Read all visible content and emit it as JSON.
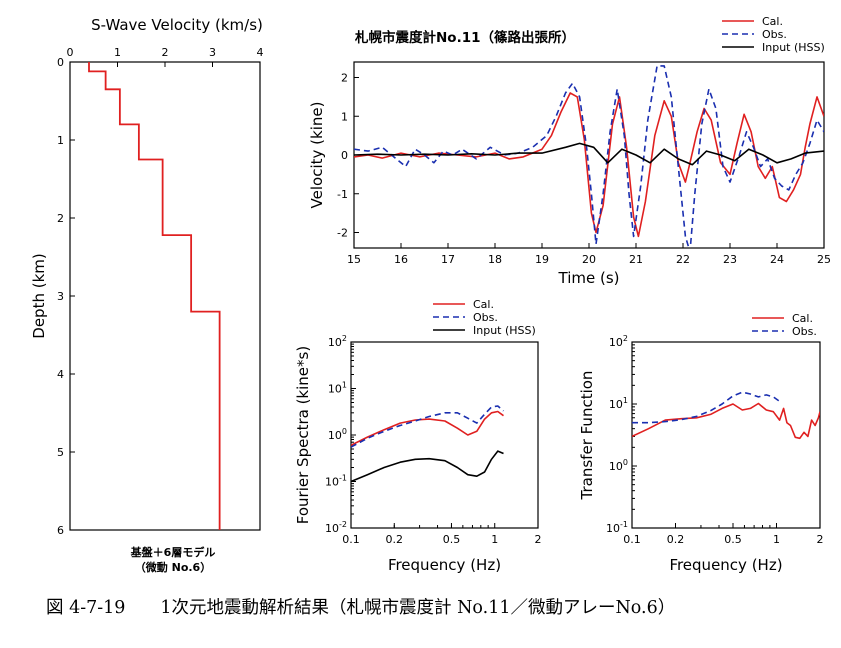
{
  "caption": "図 4-7-19　　1次元地震動解析結果（札幌市震度計 No.11／微動アレーNo.6）",
  "chart_data": [
    {
      "id": "vs_profile",
      "type": "line",
      "title": "S-Wave Velocity (km/s)",
      "xlabel": "S-Wave Velocity (km/s)",
      "ylabel": "Depth (km)",
      "xlim": [
        0,
        4
      ],
      "ylim": [
        0,
        6
      ],
      "x_ticks": [
        "0",
        "1",
        "2",
        "3",
        "4"
      ],
      "y_ticks": [
        "0",
        "1",
        "2",
        "3",
        "4",
        "5",
        "6"
      ],
      "footer_line1": "基盤＋6層モデル",
      "footer_line2": "（微動 No.6）",
      "color": "#e02020",
      "layers": [
        {
          "vs": 0.4,
          "top": 0.0,
          "bottom": 0.12
        },
        {
          "vs": 0.75,
          "top": 0.12,
          "bottom": 0.35
        },
        {
          "vs": 1.05,
          "top": 0.35,
          "bottom": 0.8
        },
        {
          "vs": 1.45,
          "top": 0.8,
          "bottom": 1.25
        },
        {
          "vs": 1.95,
          "top": 1.25,
          "bottom": 2.22
        },
        {
          "vs": 2.55,
          "top": 2.22,
          "bottom": 3.2
        },
        {
          "vs": 3.15,
          "top": 3.2,
          "bottom": 6.0
        }
      ]
    },
    {
      "id": "velocity_waveform",
      "type": "line",
      "title": "札幌市震度計No.11（篠路出張所）",
      "xlabel": "Time (s)",
      "ylabel": "Velocity (kine)",
      "xlim": [
        15,
        25
      ],
      "ylim": [
        -2.4,
        2.4
      ],
      "x_ticks": [
        "15",
        "16",
        "17",
        "18",
        "19",
        "20",
        "21",
        "22",
        "23",
        "24",
        "25"
      ],
      "y_ticks": [
        "-2",
        "-1",
        "0",
        "1",
        "2"
      ],
      "legend": [
        "Cal.",
        "Obs.",
        "Input (HSS)"
      ],
      "series": [
        {
          "name": "Cal.",
          "color": "#e02020",
          "dash": "none",
          "x": [
            15.0,
            15.3,
            15.6,
            16.0,
            16.4,
            16.8,
            17.2,
            17.6,
            18.0,
            18.3,
            18.6,
            19.0,
            19.2,
            19.4,
            19.6,
            19.75,
            19.9,
            20.05,
            20.15,
            20.3,
            20.5,
            20.65,
            20.8,
            20.95,
            21.05,
            21.2,
            21.4,
            21.6,
            21.75,
            21.9,
            22.05,
            22.15,
            22.3,
            22.45,
            22.6,
            22.8,
            23.0,
            23.15,
            23.3,
            23.45,
            23.6,
            23.75,
            23.9,
            24.05,
            24.2,
            24.35,
            24.5,
            24.6,
            24.7,
            24.85,
            25.0
          ],
          "y": [
            -0.05,
            0.0,
            -0.08,
            0.05,
            -0.05,
            0.05,
            0.0,
            -0.05,
            0.05,
            -0.1,
            -0.05,
            0.15,
            0.5,
            1.1,
            1.6,
            1.5,
            0.4,
            -1.5,
            -2.0,
            -1.3,
            0.8,
            1.5,
            0.2,
            -1.6,
            -2.1,
            -1.2,
            0.5,
            1.4,
            1.0,
            -0.2,
            -0.7,
            -0.2,
            0.6,
            1.2,
            0.9,
            -0.2,
            -0.5,
            0.3,
            1.05,
            0.6,
            -0.3,
            -0.6,
            -0.3,
            -1.1,
            -1.2,
            -0.9,
            -0.5,
            0.2,
            0.8,
            1.5,
            1.0
          ]
        },
        {
          "name": "Obs.",
          "color": "#1a2fb0",
          "dash": "6 4",
          "x": [
            15.0,
            15.3,
            15.6,
            15.9,
            16.1,
            16.3,
            16.5,
            16.7,
            16.9,
            17.1,
            17.3,
            17.6,
            17.9,
            18.2,
            18.5,
            18.8,
            19.1,
            19.3,
            19.5,
            19.65,
            19.8,
            19.95,
            20.05,
            20.15,
            20.3,
            20.45,
            20.6,
            20.75,
            20.85,
            20.95,
            21.1,
            21.25,
            21.45,
            21.6,
            21.75,
            21.9,
            22.05,
            22.15,
            22.25,
            22.4,
            22.55,
            22.7,
            22.85,
            23.0,
            23.2,
            23.35,
            23.5,
            23.65,
            23.8,
            23.95,
            24.1,
            24.25,
            24.4,
            24.55,
            24.7,
            24.85,
            25.0
          ],
          "y": [
            0.15,
            0.1,
            0.2,
            -0.1,
            -0.3,
            0.15,
            0.0,
            -0.2,
            0.1,
            0.0,
            0.15,
            -0.1,
            0.2,
            0.0,
            0.05,
            0.2,
            0.5,
            1.0,
            1.6,
            1.85,
            1.5,
            0.2,
            -1.0,
            -2.3,
            -1.0,
            0.6,
            1.7,
            0.5,
            -1.0,
            -2.1,
            -0.8,
            0.9,
            2.3,
            2.3,
            1.5,
            -0.3,
            -2.1,
            -2.5,
            -1.0,
            0.8,
            1.7,
            1.2,
            -0.3,
            -0.7,
            0.0,
            0.6,
            0.2,
            -0.3,
            -0.1,
            -0.6,
            -0.8,
            -0.9,
            -0.5,
            -0.2,
            0.3,
            0.9,
            0.6
          ]
        },
        {
          "name": "Input (HSS)",
          "color": "#000000",
          "dash": "none",
          "x": [
            15.0,
            15.5,
            16.0,
            16.5,
            17.0,
            17.5,
            18.0,
            18.5,
            19.0,
            19.5,
            19.8,
            20.1,
            20.4,
            20.7,
            21.0,
            21.3,
            21.6,
            21.9,
            22.2,
            22.5,
            22.8,
            23.1,
            23.4,
            23.7,
            24.0,
            24.3,
            24.6,
            25.0
          ],
          "y": [
            0.0,
            0.02,
            0.0,
            0.02,
            0.0,
            0.03,
            0.0,
            0.05,
            0.05,
            0.2,
            0.3,
            0.2,
            -0.2,
            0.15,
            0.0,
            -0.2,
            0.15,
            -0.1,
            -0.25,
            0.1,
            0.0,
            -0.15,
            0.15,
            0.0,
            -0.2,
            -0.1,
            0.05,
            0.1
          ]
        }
      ]
    },
    {
      "id": "fourier_spectra",
      "type": "line",
      "xlabel": "Frequency (Hz)",
      "ylabel": "Fourier Spectra (kine*s)",
      "x_scale": "log",
      "y_scale": "log",
      "xlim": [
        0.1,
        2
      ],
      "ylim": [
        0.01,
        100
      ],
      "x_ticks": [
        "0.1",
        "0.2",
        "0.5",
        "1",
        "2"
      ],
      "y_ticks": [
        "10-2",
        "10-1",
        "100",
        "101",
        "102"
      ],
      "legend": [
        "Cal.",
        "Obs.",
        "Input (HSS)"
      ],
      "series": [
        {
          "name": "Cal.",
          "color": "#e02020",
          "dash": "none",
          "x": [
            0.1,
            0.13,
            0.17,
            0.22,
            0.28,
            0.35,
            0.45,
            0.55,
            0.65,
            0.75,
            0.85,
            0.95,
            1.05,
            1.15
          ],
          "y": [
            0.6,
            0.9,
            1.3,
            1.8,
            2.1,
            2.2,
            2.0,
            1.4,
            1.0,
            1.2,
            2.2,
            3.0,
            3.2,
            2.6
          ]
        },
        {
          "name": "Obs.",
          "color": "#1a2fb0",
          "dash": "6 4",
          "x": [
            0.1,
            0.13,
            0.17,
            0.22,
            0.28,
            0.35,
            0.45,
            0.55,
            0.65,
            0.75,
            0.85,
            0.95,
            1.05,
            1.15
          ],
          "y": [
            0.55,
            0.85,
            1.2,
            1.6,
            2.0,
            2.5,
            3.0,
            3.0,
            2.3,
            1.8,
            2.8,
            4.0,
            4.2,
            3.3
          ]
        },
        {
          "name": "Input (HSS)",
          "color": "#000000",
          "dash": "none",
          "x": [
            0.1,
            0.13,
            0.17,
            0.22,
            0.28,
            0.35,
            0.45,
            0.55,
            0.65,
            0.75,
            0.85,
            0.95,
            1.05,
            1.15
          ],
          "y": [
            0.1,
            0.14,
            0.2,
            0.26,
            0.3,
            0.31,
            0.28,
            0.2,
            0.14,
            0.13,
            0.16,
            0.3,
            0.45,
            0.4
          ]
        }
      ]
    },
    {
      "id": "transfer_function",
      "type": "line",
      "xlabel": "Frequency (Hz)",
      "ylabel": "Transfer Function",
      "x_scale": "log",
      "y_scale": "log",
      "xlim": [
        0.1,
        2
      ],
      "ylim": [
        0.1,
        100
      ],
      "x_ticks": [
        "0.1",
        "0.2",
        "0.5",
        "1",
        "2"
      ],
      "y_ticks": [
        "10-1",
        "100",
        "101",
        "102"
      ],
      "legend": [
        "Cal.",
        "Obs."
      ],
      "series": [
        {
          "name": "Cal.",
          "color": "#e02020",
          "dash": "none",
          "x": [
            0.1,
            0.13,
            0.17,
            0.22,
            0.28,
            0.35,
            0.42,
            0.5,
            0.58,
            0.66,
            0.75,
            0.85,
            0.95,
            1.05,
            1.12,
            1.18,
            1.25,
            1.35,
            1.45,
            1.55,
            1.65,
            1.75,
            1.85,
            1.95,
            2.0
          ],
          "y": [
            3.0,
            4.0,
            5.5,
            5.8,
            6.0,
            6.8,
            8.5,
            10.0,
            8.0,
            8.5,
            10.2,
            8.0,
            7.5,
            5.5,
            8.5,
            5.0,
            4.5,
            2.9,
            2.8,
            3.5,
            3.0,
            5.5,
            4.5,
            6.0,
            7.5
          ]
        },
        {
          "name": "Obs.",
          "color": "#1a2fb0",
          "dash": "6 4",
          "x": [
            0.1,
            0.13,
            0.17,
            0.22,
            0.28,
            0.35,
            0.42,
            0.5,
            0.58,
            0.66,
            0.75,
            0.85,
            0.95,
            1.05
          ],
          "y": [
            5.0,
            5.0,
            5.2,
            5.6,
            6.3,
            7.8,
            10.0,
            13.5,
            15.5,
            14.5,
            13.0,
            14.0,
            13.0,
            11.0
          ]
        }
      ]
    }
  ]
}
